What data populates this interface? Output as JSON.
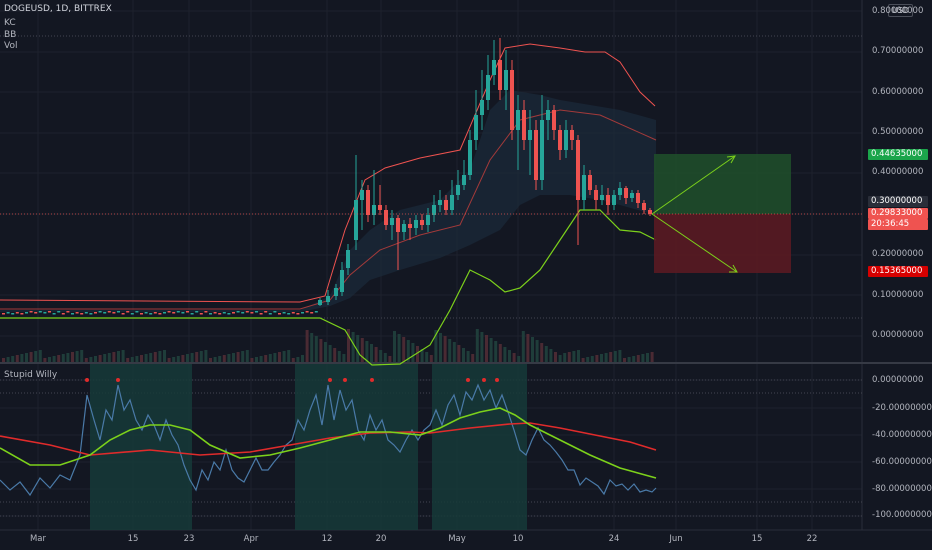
{
  "legend": {
    "symbol": "DOGEUSD, 1D, BITTREX",
    "indicators": [
      "KC",
      "BB",
      "Vol"
    ],
    "sub_indicator": "Stupid Willy"
  },
  "currency_label": "USD",
  "price_axis": [
    "0.80000000",
    "0.70000000",
    "0.60000000",
    "0.50000000",
    "0.40000000",
    "0.30000000",
    "0.20000000",
    "0.10000000",
    "0.00000000"
  ],
  "price_badges": {
    "target": "0.44635000",
    "level": "0.30000000",
    "last_price": "0.29833000",
    "countdown": "20:36:45",
    "stop": "0.15365000"
  },
  "osc_axis": [
    "0.00000000",
    "-20.00000000",
    "-40.00000000",
    "-60.00000000",
    "-80.00000000",
    "-100.00000000"
  ],
  "time_axis": [
    "Mar",
    "15",
    "23",
    "Apr",
    "12",
    "20",
    "May",
    "10",
    "24",
    "Jun",
    "15",
    "22"
  ],
  "colors": {
    "background": "#131722",
    "up": "#26a69a",
    "down": "#ef5350",
    "keltner": "#ef5350",
    "bollinger": "#7cd11b",
    "osc_line": "#4a7aa8",
    "osc_fast": "#7cd11b",
    "osc_slow": "#e02b2b",
    "profit_zone": "#1f4d2a",
    "loss_zone": "#5a1a22"
  },
  "chart_data": [
    {
      "type": "candlestick",
      "title": "DOGEUSD, 1D, BITTREX",
      "ylim": [
        0,
        0.8
      ],
      "x": [
        "Mar",
        "15",
        "23",
        "Apr",
        "12",
        "20",
        "May",
        "10",
        "24",
        "Jun",
        "15",
        "22"
      ],
      "series": [
        {
          "name": "KC"
        },
        {
          "name": "BB"
        },
        {
          "name": "Vol"
        }
      ],
      "long_position": {
        "target": 0.44635,
        "entry": 0.29833,
        "stop": 0.15365
      }
    },
    {
      "type": "line",
      "title": "Stupid Willy",
      "ylim": [
        -100,
        0
      ]
    }
  ]
}
